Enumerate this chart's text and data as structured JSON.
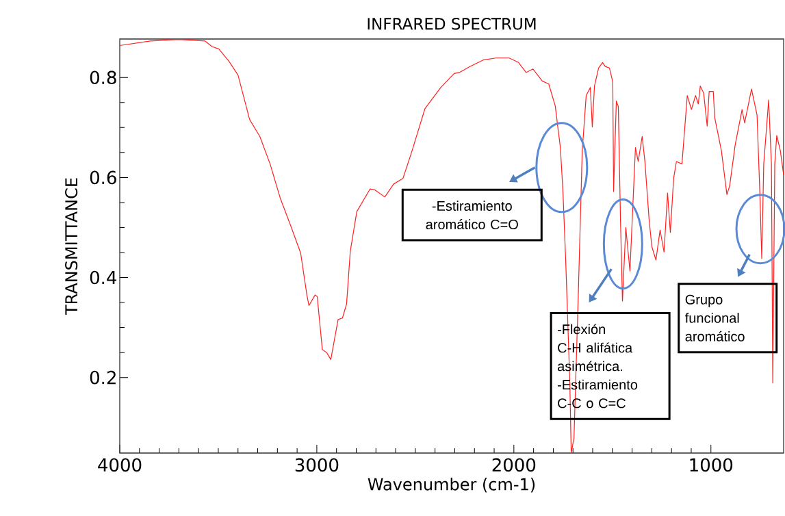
{
  "chart_data": {
    "type": "line",
    "title": "INFRARED SPECTRUM",
    "xlabel": "Wavenumber (cm-1)",
    "ylabel": "TRANSMITTANCE",
    "color": "#ff2020",
    "x": [
      4000,
      3844,
      3705,
      3567,
      3532,
      3497,
      3445,
      3400,
      3341,
      3289,
      3237,
      3185,
      3133,
      3082,
      3050,
      3040,
      3009,
      2998,
      2972,
      2950,
      2929,
      2892,
      2870,
      2849,
      2830,
      2797,
      2730,
      2704,
      2655,
      2610,
      2563,
      2517,
      2451,
      2371,
      2303,
      2277,
      2223,
      2156,
      2090,
      2024,
      1976,
      1938,
      1903,
      1856,
      1823,
      1790,
      1777,
      1764,
      1751,
      1737,
      1716,
      1709,
      1695,
      1674,
      1653,
      1633,
      1612,
      1602,
      1591,
      1570,
      1550,
      1536,
      1515,
      1498,
      1494,
      1480,
      1470,
      1459,
      1449,
      1432,
      1411,
      1383,
      1369,
      1349,
      1335,
      1314,
      1300,
      1279,
      1258,
      1238,
      1220,
      1206,
      1189,
      1175,
      1147,
      1120,
      1099,
      1078,
      1064,
      1054,
      1037,
      1019,
      1009,
      988,
      981,
      947,
      919,
      905,
      877,
      842,
      829,
      794,
      766,
      752,
      742,
      732,
      707,
      693,
      686,
      676,
      666,
      648,
      631
    ],
    "values": [
      0.864,
      0.873,
      0.876,
      0.873,
      0.862,
      0.857,
      0.832,
      0.805,
      0.716,
      0.682,
      0.627,
      0.558,
      0.504,
      0.449,
      0.364,
      0.344,
      0.365,
      0.362,
      0.256,
      0.25,
      0.236,
      0.316,
      0.319,
      0.347,
      0.453,
      0.532,
      0.577,
      0.575,
      0.561,
      0.587,
      0.598,
      0.653,
      0.738,
      0.78,
      0.808,
      0.81,
      0.822,
      0.835,
      0.839,
      0.839,
      0.83,
      0.81,
      0.817,
      0.793,
      0.787,
      0.743,
      0.701,
      0.66,
      0.572,
      0.435,
      0.189,
      0.049,
      0.079,
      0.353,
      0.654,
      0.764,
      0.78,
      0.701,
      0.783,
      0.819,
      0.83,
      0.822,
      0.819,
      0.791,
      0.572,
      0.753,
      0.742,
      0.517,
      0.353,
      0.5,
      0.413,
      0.66,
      0.632,
      0.682,
      0.632,
      0.517,
      0.462,
      0.435,
      0.495,
      0.451,
      0.569,
      0.49,
      0.599,
      0.632,
      0.627,
      0.764,
      0.736,
      0.764,
      0.747,
      0.783,
      0.769,
      0.703,
      0.772,
      0.772,
      0.72,
      0.654,
      0.566,
      0.583,
      0.665,
      0.736,
      0.709,
      0.777,
      0.725,
      0.572,
      0.438,
      0.627,
      0.755,
      0.627,
      0.189,
      0.627,
      0.684,
      0.654,
      0.605
    ],
    "xlim": [
      4000,
      631
    ],
    "ylim": [
      0.049,
      0.877
    ],
    "xticks": [
      4000,
      3000,
      2000,
      1000
    ],
    "yticks": [
      0.2,
      0.4,
      0.6,
      0.8
    ],
    "annotations": [
      "-Estiramiento aromático C=O",
      "-Flexión C-H alifática asimétrica. -Estiramiento C-C o C=C",
      "Grupo funcional aromático"
    ]
  }
}
